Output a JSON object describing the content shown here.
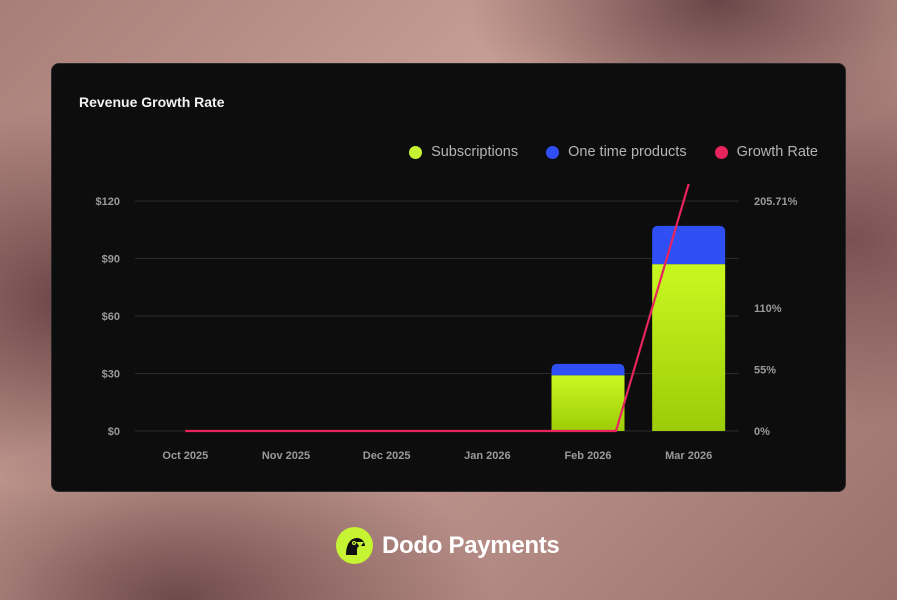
{
  "card": {
    "title": "Revenue Growth Rate"
  },
  "brand": {
    "name": "Dodo Payments",
    "logo_icon": "dodo-bird-icon",
    "logo_color": "#c6f432"
  },
  "chart_data": {
    "type": "bar",
    "title": "Revenue Growth Rate",
    "categories": [
      "Oct 2025",
      "Nov 2025",
      "Dec 2025",
      "Jan 2026",
      "Feb 2026",
      "Mar 2026"
    ],
    "stacked": true,
    "legend_position": "top-right",
    "grid": true,
    "series": [
      {
        "name": "Subscriptions",
        "type": "bar",
        "axis": "left",
        "color": "#c6f432",
        "values": [
          0,
          0,
          0,
          0,
          29,
          87
        ]
      },
      {
        "name": "One time products",
        "type": "bar",
        "axis": "left",
        "color": "#2f4ff5",
        "values": [
          0,
          0,
          0,
          0,
          6,
          20
        ]
      },
      {
        "name": "Growth Rate",
        "type": "line",
        "axis": "right",
        "color": "#e8245e",
        "values": [
          0,
          0,
          0,
          0,
          0,
          221
        ]
      }
    ],
    "left_axis": {
      "ticks": [
        "$0",
        "$30",
        "$60",
        "$90",
        "$120"
      ],
      "tick_values": [
        0,
        30,
        60,
        90,
        120
      ],
      "ylim": [
        0,
        120
      ]
    },
    "right_axis": {
      "ticks": [
        "0%",
        "55%",
        "110%",
        "205.71%"
      ],
      "tick_values": [
        0,
        55,
        110,
        205.71
      ],
      "ylim": [
        0,
        205.71
      ]
    }
  }
}
